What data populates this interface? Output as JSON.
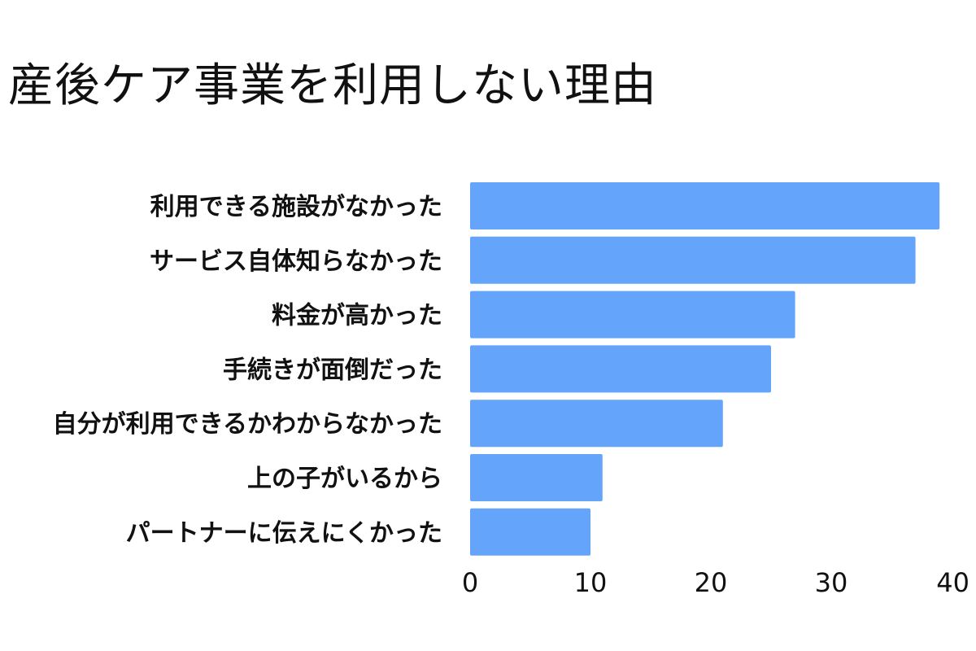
{
  "title": "産後ケア事業を利用しない理由",
  "chart_data": {
    "type": "bar",
    "orientation": "horizontal",
    "title": "産後ケア事業を利用しない理由",
    "xlabel": "",
    "ylabel": "",
    "categories": [
      "利用できる施設がなかった",
      "サービス自体知らなかった",
      "料金が高かった",
      "手続きが面倒だった",
      "自分が利用できるかわからなかった",
      "上の子がいるから",
      "パートナーに伝えにくかった"
    ],
    "values": [
      39,
      37,
      27,
      25,
      21,
      11,
      10
    ],
    "xlim": [
      0,
      40
    ],
    "xticks": [
      0,
      10,
      20,
      30,
      40
    ],
    "grid": false,
    "legend": "none",
    "bar_color": "#64a5fb",
    "text_color": "#111111"
  }
}
